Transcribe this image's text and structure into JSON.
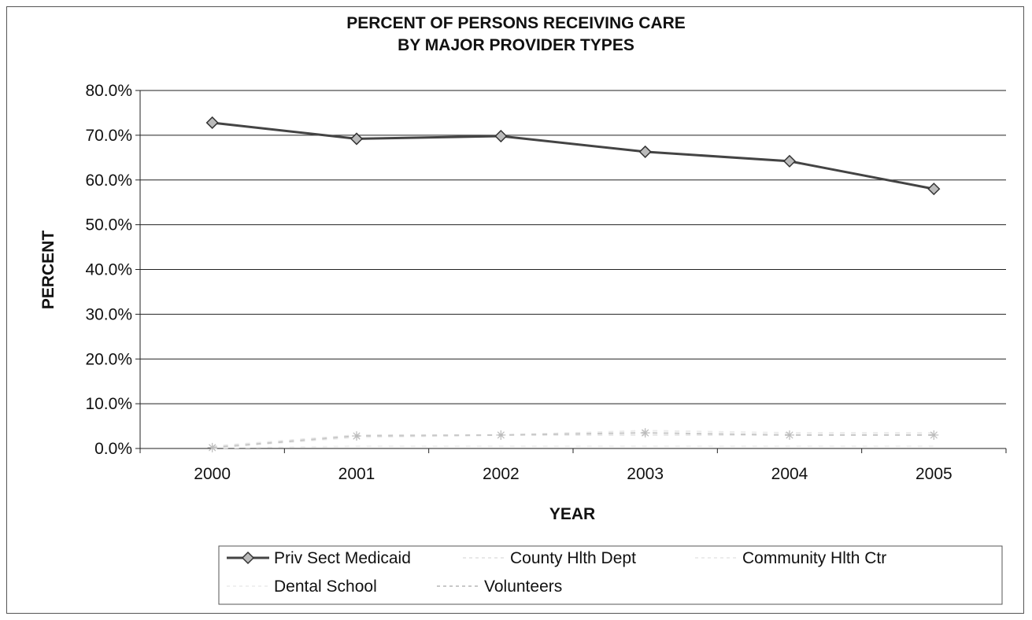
{
  "chart_data": {
    "type": "line",
    "title_lines": [
      "PERCENT OF PERSONS RECEIVING CARE",
      "BY MAJOR PROVIDER TYPES"
    ],
    "xlabel": "YEAR",
    "ylabel": "PERCENT",
    "categories": [
      "2000",
      "2001",
      "2002",
      "2003",
      "2004",
      "2005"
    ],
    "ylim": [
      0,
      80
    ],
    "yticks": [
      "0.0%",
      "10.0%",
      "20.0%",
      "30.0%",
      "40.0%",
      "50.0%",
      "60.0%",
      "70.0%",
      "80.0%"
    ],
    "grid": true,
    "legend_position": "bottom",
    "series": [
      {
        "name": "Priv Sect Medicaid",
        "values": [
          72.8,
          69.2,
          69.8,
          66.3,
          64.2,
          58.0
        ],
        "color": "#444444",
        "marker": "diamond"
      },
      {
        "name": "County Hlth Dept",
        "values": [
          0.5,
          3.0,
          3.0,
          3.0,
          3.0,
          3.0
        ],
        "color": "#e8e8e8",
        "marker": "none"
      },
      {
        "name": "Community Hlth Ctr",
        "values": [
          0.2,
          2.5,
          3.0,
          4.0,
          3.5,
          3.5
        ],
        "color": "#ececec",
        "marker": "none"
      },
      {
        "name": "Dental School",
        "values": [
          0.1,
          0.5,
          0.5,
          0.5,
          0.5,
          0.5
        ],
        "color": "#f0f0f0",
        "marker": "none"
      },
      {
        "name": "Volunteers",
        "values": [
          0.2,
          2.8,
          3.0,
          3.5,
          3.0,
          3.0
        ],
        "color": "#c8c8c8",
        "marker": "asterisk"
      }
    ]
  }
}
